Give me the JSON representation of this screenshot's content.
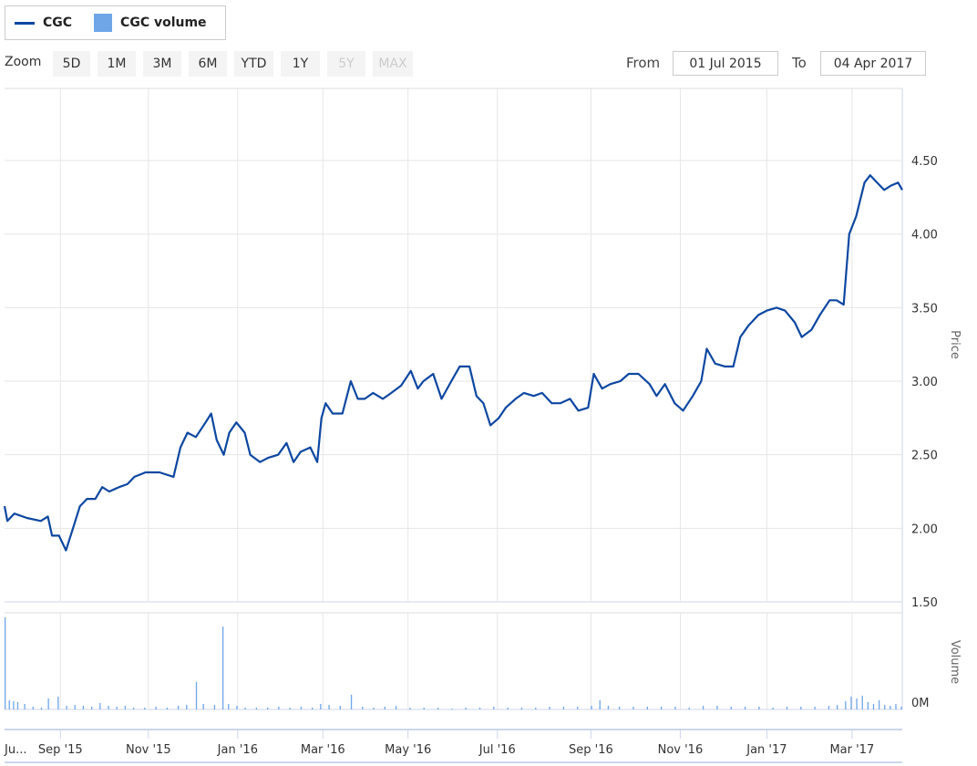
{
  "legend": {
    "items": [
      {
        "label": "CGC",
        "color": "#0d47a1"
      },
      {
        "label": "CGC volume",
        "color": "#6ea6e8"
      }
    ]
  },
  "range_selector": {
    "zoom_label": "Zoom",
    "buttons": [
      {
        "label": "5D",
        "enabled": true
      },
      {
        "label": "1M",
        "enabled": true
      },
      {
        "label": "3M",
        "enabled": true
      },
      {
        "label": "6M",
        "enabled": true
      },
      {
        "label": "YTD",
        "enabled": true
      },
      {
        "label": "1Y",
        "enabled": true
      },
      {
        "label": "5Y",
        "enabled": false
      },
      {
        "label": "MAX",
        "enabled": false
      }
    ],
    "from_label": "From",
    "from_value": "01 Jul 2015",
    "to_label": "To",
    "to_value": "04 Apr 2017"
  },
  "chart_data": {
    "type": "line",
    "x_unit": "days since 2015-07-01",
    "x_range": [
      0,
      643
    ],
    "xticks": [
      {
        "day": 0,
        "label": "Ju..."
      },
      {
        "day": 40,
        "label": "Sep '15"
      },
      {
        "day": 103,
        "label": "Nov '15"
      },
      {
        "day": 167,
        "label": "Jan '16"
      },
      {
        "day": 228,
        "label": "Mar '16"
      },
      {
        "day": 289,
        "label": "May '16"
      },
      {
        "day": 353,
        "label": "Jul '16"
      },
      {
        "day": 420,
        "label": "Sep '16"
      },
      {
        "day": 484,
        "label": "Nov '16"
      },
      {
        "day": 546,
        "label": "Jan '17"
      },
      {
        "day": 607,
        "label": "Mar '17"
      }
    ],
    "price_axis": {
      "title": "Price",
      "ylim": [
        1.5,
        4.99
      ],
      "ticks": [
        "1.50",
        "2.00",
        "2.50",
        "3.00",
        "3.50",
        "4.00",
        "4.50"
      ]
    },
    "volume_axis": {
      "title": "Volume",
      "ticks": [
        "0M"
      ],
      "ylim": [
        0,
        10.5
      ]
    },
    "series": [
      {
        "name": "CGC",
        "color": "#0d47a1",
        "x": [
          0,
          2,
          7,
          16,
          26,
          31,
          34,
          39,
          44,
          49,
          54,
          59,
          65,
          70,
          75,
          82,
          88,
          93,
          101,
          111,
          121,
          126,
          131,
          137,
          144,
          148,
          152,
          157,
          161,
          166,
          172,
          176,
          183,
          189,
          196,
          202,
          207,
          212,
          219,
          224,
          227,
          230,
          235,
          242,
          248,
          253,
          258,
          264,
          271,
          277,
          284,
          291,
          296,
          300,
          307,
          313,
          320,
          326,
          333,
          338,
          343,
          348,
          354,
          359,
          366,
          372,
          379,
          385,
          392,
          398,
          405,
          411,
          418,
          422,
          428,
          434,
          441,
          447,
          454,
          462,
          467,
          473,
          480,
          486,
          493,
          499,
          503,
          509,
          516,
          522,
          527,
          533,
          540,
          546,
          553,
          559,
          566,
          571,
          578,
          584,
          591,
          596,
          601,
          605,
          610,
          616,
          620,
          625,
          630,
          635,
          640,
          643
        ],
        "values": [
          2.15,
          2.05,
          2.1,
          2.07,
          2.05,
          2.08,
          1.95,
          1.95,
          1.85,
          2.0,
          2.15,
          2.2,
          2.2,
          2.28,
          2.25,
          2.28,
          2.3,
          2.35,
          2.38,
          2.38,
          2.35,
          2.55,
          2.65,
          2.62,
          2.72,
          2.78,
          2.6,
          2.5,
          2.65,
          2.72,
          2.65,
          2.5,
          2.45,
          2.48,
          2.5,
          2.58,
          2.45,
          2.52,
          2.55,
          2.45,
          2.75,
          2.85,
          2.78,
          2.78,
          3.0,
          2.88,
          2.88,
          2.92,
          2.88,
          2.92,
          2.97,
          3.07,
          2.95,
          3.0,
          3.05,
          2.88,
          3.0,
          3.1,
          3.1,
          2.9,
          2.85,
          2.7,
          2.75,
          2.82,
          2.88,
          2.92,
          2.9,
          2.92,
          2.85,
          2.85,
          2.88,
          2.8,
          2.82,
          3.05,
          2.95,
          2.98,
          3.0,
          3.05,
          3.05,
          2.98,
          2.9,
          2.98,
          2.85,
          2.8,
          2.9,
          3.0,
          3.22,
          3.12,
          3.1,
          3.1,
          3.3,
          3.38,
          3.45,
          3.48,
          3.5,
          3.48,
          3.4,
          3.3,
          3.35,
          3.45,
          3.55,
          3.55,
          3.52,
          4.0,
          4.12,
          4.35,
          4.4,
          4.35,
          4.3,
          4.33,
          4.35,
          4.3
        ]
      },
      {
        "name": "CGC volume",
        "color": "#6ea6e8",
        "type": "column",
        "x": [
          0,
          3,
          6,
          9,
          14,
          20,
          26,
          31,
          38,
          44,
          50,
          56,
          62,
          68,
          74,
          80,
          86,
          92,
          100,
          108,
          116,
          124,
          130,
          137,
          142,
          150,
          156,
          160,
          166,
          172,
          180,
          188,
          196,
          204,
          212,
          220,
          226,
          232,
          240,
          248,
          256,
          264,
          272,
          280,
          290,
          300,
          310,
          320,
          330,
          340,
          350,
          360,
          370,
          380,
          390,
          400,
          410,
          420,
          426,
          432,
          440,
          450,
          460,
          470,
          480,
          490,
          500,
          510,
          520,
          530,
          540,
          550,
          560,
          570,
          580,
          590,
          596,
          602,
          606,
          610,
          614,
          618,
          622,
          626,
          630,
          634,
          638,
          642
        ],
        "values": [
          10.0,
          1.0,
          0.9,
          0.8,
          0.6,
          0.3,
          0.2,
          1.2,
          1.4,
          0.4,
          0.5,
          0.4,
          0.3,
          0.7,
          0.4,
          0.3,
          0.4,
          0.2,
          0.2,
          0.3,
          0.2,
          0.4,
          0.5,
          3.0,
          0.6,
          0.5,
          9.0,
          0.6,
          0.4,
          0.2,
          0.2,
          0.2,
          0.3,
          0.2,
          0.3,
          0.2,
          0.6,
          0.5,
          0.4,
          1.6,
          0.3,
          0.2,
          0.3,
          0.4,
          0.2,
          0.2,
          0.2,
          0.1,
          0.2,
          0.2,
          0.3,
          0.2,
          0.2,
          0.2,
          0.3,
          0.3,
          0.3,
          0.4,
          1.0,
          0.4,
          0.3,
          0.3,
          0.3,
          0.3,
          0.3,
          0.2,
          0.4,
          0.4,
          0.3,
          0.3,
          0.3,
          0.2,
          0.3,
          0.3,
          0.3,
          0.4,
          0.5,
          0.9,
          1.4,
          1.2,
          1.5,
          0.8,
          0.6,
          1.0,
          0.5,
          0.4,
          0.6,
          0.3
        ]
      }
    ]
  }
}
